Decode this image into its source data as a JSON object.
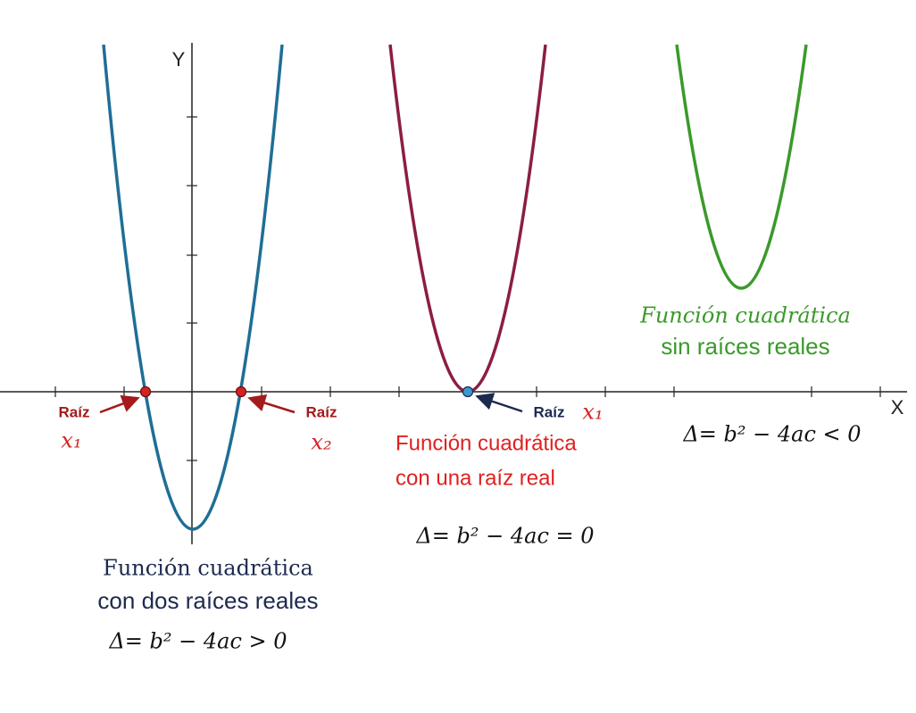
{
  "axes": {
    "x_label": "X",
    "y_label": "Y"
  },
  "curves": [
    {
      "title": [
        "Función cuadrática",
        "con dos raíces reales"
      ],
      "formula": "Δ= b² − 4ac > 0",
      "roots": [
        {
          "label": "Raíz",
          "symbol": "x₁"
        },
        {
          "label": "Raíz",
          "symbol": "x₂"
        }
      ]
    },
    {
      "title": [
        "Función cuadrática",
        "con una raíz real"
      ],
      "formula": "Δ= b² − 4ac = 0",
      "roots": [
        {
          "label": "Raíz",
          "symbol": "x₁"
        }
      ]
    },
    {
      "title": [
        "Función cuadrática",
        "sin raíces reales"
      ],
      "formula": "Δ= b² − 4ac < 0"
    }
  ]
}
